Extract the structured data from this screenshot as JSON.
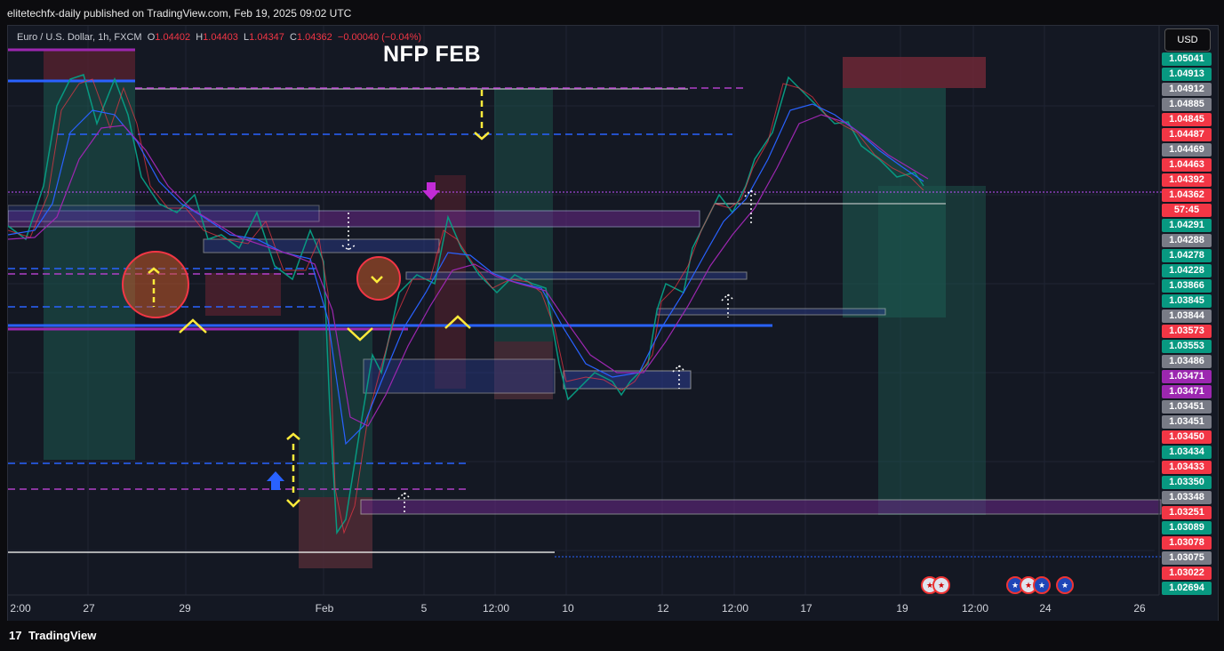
{
  "header": {
    "publish_text": "elitetechfx-daily published on TradingView.com, Feb 19, 2025 09:02 UTC"
  },
  "legend": {
    "symbol": "Euro / U.S. Dollar, 1h, FXCM",
    "open_label": "O",
    "open": "1.04402",
    "high_label": "H",
    "high": "1.04403",
    "low_label": "L",
    "low": "1.04347",
    "close_label": "C",
    "close": "1.04362",
    "change": "−0.00040 (−0.04%)"
  },
  "chart_title": "NFP FEB",
  "currency_button": "USD",
  "price_labels": [
    {
      "text": "1.05041",
      "color": "#089981"
    },
    {
      "text": "1.04913",
      "color": "#089981"
    },
    {
      "text": "1.04912",
      "color": "#787b86"
    },
    {
      "text": "1.04885",
      "color": "#787b86"
    },
    {
      "text": "1.04845",
      "color": "#f23645"
    },
    {
      "text": "1.04487",
      "color": "#f23645"
    },
    {
      "text": "1.04469",
      "color": "#787b86"
    },
    {
      "text": "1.04463",
      "color": "#f23645"
    },
    {
      "text": "1.04392",
      "color": "#f23645"
    },
    {
      "text": "1.04362",
      "color": "#f23645"
    },
    {
      "text": "57:45",
      "color": "#f23645"
    },
    {
      "text": "1.04291",
      "color": "#089981"
    },
    {
      "text": "1.04288",
      "color": "#787b86"
    },
    {
      "text": "1.04278",
      "color": "#089981"
    },
    {
      "text": "1.04228",
      "color": "#089981"
    },
    {
      "text": "1.03866",
      "color": "#089981"
    },
    {
      "text": "1.03845",
      "color": "#089981"
    },
    {
      "text": "1.03844",
      "color": "#787b86"
    },
    {
      "text": "1.03573",
      "color": "#f23645"
    },
    {
      "text": "1.03553",
      "color": "#089981"
    },
    {
      "text": "1.03486",
      "color": "#787b86"
    },
    {
      "text": "1.03471",
      "color": "#9c27b0"
    },
    {
      "text": "1.03471",
      "color": "#9c27b0"
    },
    {
      "text": "1.03451",
      "color": "#787b86"
    },
    {
      "text": "1.03451",
      "color": "#787b86"
    },
    {
      "text": "1.03450",
      "color": "#f23645"
    },
    {
      "text": "1.03434",
      "color": "#089981"
    },
    {
      "text": "1.03433",
      "color": "#f23645"
    },
    {
      "text": "1.03350",
      "color": "#089981"
    },
    {
      "text": "1.03348",
      "color": "#787b86"
    },
    {
      "text": "1.03251",
      "color": "#f23645"
    },
    {
      "text": "1.03089",
      "color": "#089981"
    },
    {
      "text": "1.03078",
      "color": "#f23645"
    },
    {
      "text": "1.03075",
      "color": "#787b86"
    },
    {
      "text": "1.03022",
      "color": "#f23645"
    },
    {
      "text": "1.02694",
      "color": "#089981"
    }
  ],
  "time_labels": [
    "2:00",
    "27",
    "29",
    "Feb",
    "5",
    "12:00",
    "10",
    "12",
    "12:00",
    "17",
    "19",
    "12:00",
    "24",
    "26"
  ],
  "footer": {
    "logo_mark": "17",
    "brand": "TradingView"
  },
  "colors": {
    "background": "#141823",
    "bull": "#089981",
    "bear": "#f23645",
    "zone_purple": "#9c27b0",
    "zone_blue": "#2962ff",
    "marker_yellow": "#ffeb3b"
  },
  "icons": {
    "down_arrow": "magenta-down-arrow-icon",
    "up_arrow": "blue-up-arrow-icon",
    "flags": [
      "us-flag-icon",
      "eu-flag-icon"
    ]
  }
}
